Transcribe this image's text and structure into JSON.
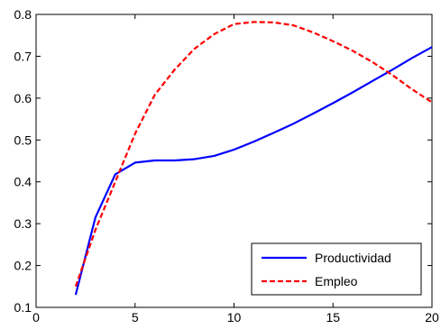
{
  "chart_data": {
    "type": "line",
    "title": "",
    "xlabel": "",
    "ylabel": "",
    "xlim": [
      0,
      20
    ],
    "ylim": [
      0.1,
      0.8
    ],
    "xticks": [
      0,
      5,
      10,
      15,
      20
    ],
    "yticks": [
      0.1,
      0.2,
      0.3,
      0.4,
      0.5,
      0.6,
      0.7,
      0.8
    ],
    "xtick_labels": [
      "0",
      "5",
      "10",
      "15",
      "20"
    ],
    "ytick_labels": [
      "0.1",
      "0.2",
      "0.3",
      "0.4",
      "0.5",
      "0.6",
      "0.7",
      "0.8"
    ],
    "grid": false,
    "legend_position": "bottom-right",
    "series": [
      {
        "name": "Productividad",
        "color": "#0000ff",
        "line_style": "solid",
        "x": [
          2,
          3,
          4,
          5,
          6,
          7,
          8,
          9,
          10,
          11,
          12,
          13,
          14,
          15,
          16,
          17,
          18,
          19,
          20
        ],
        "y": [
          0.13,
          0.315,
          0.418,
          0.446,
          0.451,
          0.451,
          0.454,
          0.462,
          0.477,
          0.496,
          0.517,
          0.539,
          0.563,
          0.588,
          0.614,
          0.641,
          0.668,
          0.696,
          0.722
        ]
      },
      {
        "name": "Empleo",
        "color": "#ff0000",
        "line_style": "dashed",
        "x": [
          2,
          3,
          4,
          5,
          6,
          7,
          8,
          9,
          10,
          11,
          12,
          13,
          14,
          15,
          16,
          17,
          18,
          19,
          20
        ],
        "y": [
          0.15,
          0.285,
          0.4,
          0.515,
          0.608,
          0.668,
          0.718,
          0.753,
          0.777,
          0.782,
          0.781,
          0.774,
          0.757,
          0.736,
          0.713,
          0.686,
          0.655,
          0.621,
          0.59
        ]
      }
    ]
  }
}
